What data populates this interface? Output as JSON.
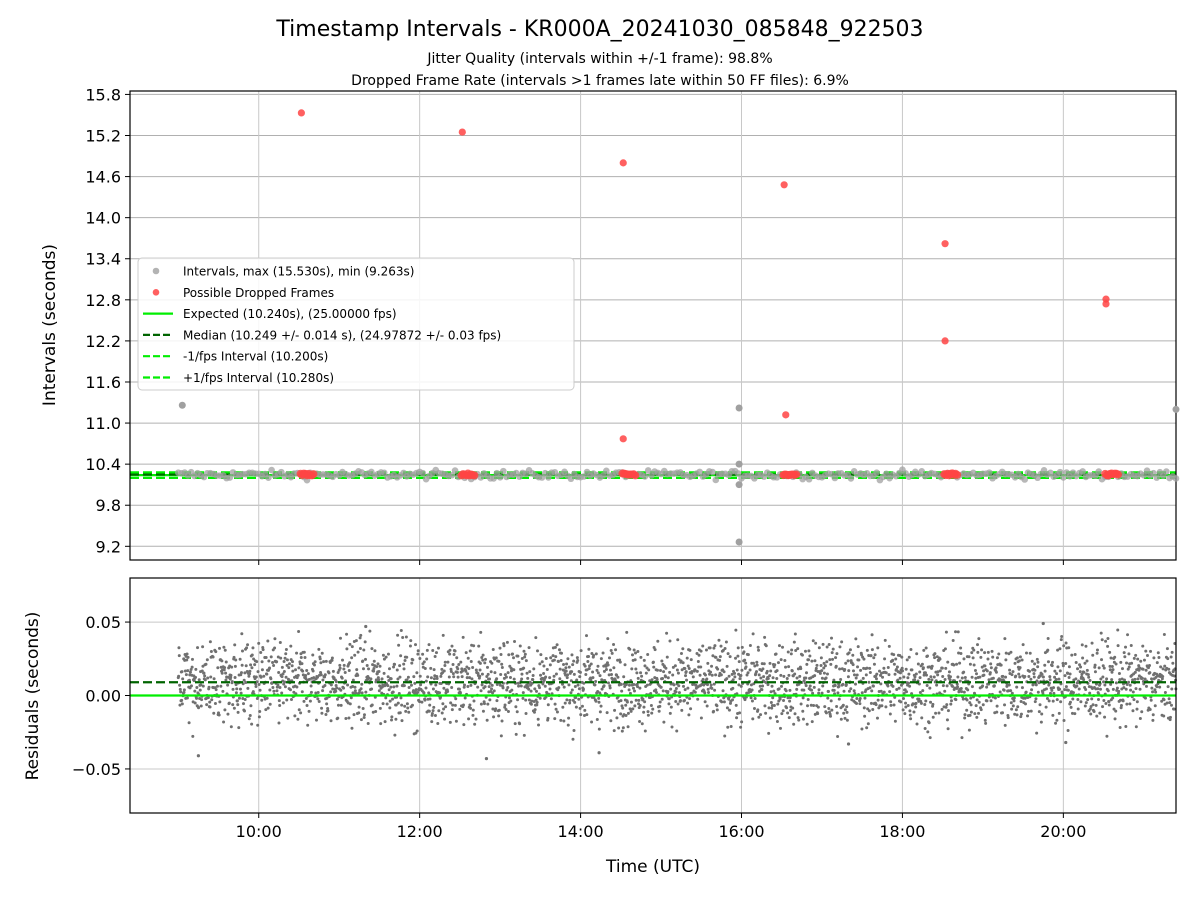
{
  "title": "Timestamp Intervals - KR000A_20241030_085848_922503",
  "subtitle_1": "Jitter Quality (intervals within +/-1 frame): 98.8%",
  "subtitle_2": "Dropped Frame Rate (intervals >1 frames late within 50 FF files): 6.9%",
  "chart_data": [
    {
      "type": "scatter",
      "ylabel": "Intervals (seconds)",
      "xlabel": "",
      "xlim_hours": [
        8.4,
        21.4
      ],
      "ylim": [
        9.0,
        15.85
      ],
      "yticks": [
        9.2,
        9.8,
        10.4,
        11.0,
        11.6,
        12.2,
        12.8,
        13.4,
        14.0,
        14.6,
        15.2,
        15.8
      ],
      "ytick_labels": [
        "9.2",
        "9.8",
        "10.4",
        "11.0",
        "11.6",
        "12.2",
        "12.8",
        "13.4",
        "14.0",
        "14.6",
        "15.2",
        "15.8"
      ],
      "grid": true,
      "legend_position": "center-left",
      "legend": [
        {
          "label": "Intervals, max (15.530s), min (9.263s)",
          "style": "dot",
          "color": "#a0a0a0"
        },
        {
          "label": "Possible Dropped Frames",
          "style": "dot",
          "color": "#ff4444"
        },
        {
          "label": "Expected (10.240s), (25.00000 fps)",
          "style": "solid",
          "color": "#00ee00"
        },
        {
          "label": "Median (10.249 +/- 0.014 s), (24.97872 +/- 0.03 fps)",
          "style": "dashed",
          "color": "#006400"
        },
        {
          "label": "-1/fps Interval (10.200s)",
          "style": "dashed",
          "color": "#00ee00"
        },
        {
          "label": "+1/fps Interval (10.280s)",
          "style": "dashed",
          "color": "#00ee00"
        }
      ],
      "series": [
        {
          "name": "Intervals, max (15.530s), min (9.263s)",
          "color": "#a0a0a0",
          "band": {
            "x_start": 9.0,
            "x_end": 21.4,
            "y_center": 10.245,
            "y_spread": 0.03
          },
          "points": [
            {
              "x": 9.05,
              "y": 11.26
            },
            {
              "x": 15.97,
              "y": 11.22
            },
            {
              "x": 15.97,
              "y": 10.4
            },
            {
              "x": 15.97,
              "y": 10.1
            },
            {
              "x": 15.97,
              "y": 9.263
            },
            {
              "x": 21.4,
              "y": 11.2
            }
          ]
        },
        {
          "name": "Possible Dropped Frames",
          "color": "#ff4444",
          "points": [
            {
              "x": 10.53,
              "y": 15.53
            },
            {
              "x": 12.53,
              "y": 15.25
            },
            {
              "x": 14.53,
              "y": 14.8
            },
            {
              "x": 14.53,
              "y": 10.77
            },
            {
              "x": 16.53,
              "y": 14.48
            },
            {
              "x": 16.55,
              "y": 11.12
            },
            {
              "x": 18.53,
              "y": 13.62
            },
            {
              "x": 18.53,
              "y": 12.2
            },
            {
              "x": 20.53,
              "y": 12.81
            },
            {
              "x": 20.53,
              "y": 12.74
            }
          ],
          "clusters": [
            {
              "x_start": 10.52,
              "x_end": 10.68,
              "y": 10.25
            },
            {
              "x_start": 12.52,
              "x_end": 12.68,
              "y": 10.25
            },
            {
              "x_start": 14.52,
              "x_end": 14.68,
              "y": 10.25
            },
            {
              "x_start": 16.52,
              "x_end": 16.68,
              "y": 10.25
            },
            {
              "x_start": 18.52,
              "x_end": 18.68,
              "y": 10.25
            },
            {
              "x_start": 20.52,
              "x_end": 20.68,
              "y": 10.25
            }
          ]
        }
      ],
      "reference_lines": [
        {
          "name": "Expected (10.240s), (25.00000 fps)",
          "y": 10.24,
          "color": "#00ee00",
          "dash": "solid"
        },
        {
          "name": "Median (10.249 +/- 0.014 s), (24.97872 +/- 0.03 fps)",
          "y": 10.249,
          "color": "#006400",
          "dash": "dashed"
        },
        {
          "name": "-1/fps Interval (10.200s)",
          "y": 10.2,
          "color": "#00ee00",
          "dash": "dashed"
        },
        {
          "name": "+1/fps Interval (10.280s)",
          "y": 10.28,
          "color": "#00ee00",
          "dash": "dashed"
        }
      ]
    },
    {
      "type": "scatter",
      "ylabel": "Residuals (seconds)",
      "xlabel": "Time (UTC)",
      "xlim_hours": [
        8.4,
        21.4
      ],
      "ylim": [
        -0.08,
        0.08
      ],
      "yticks": [
        -0.05,
        0.0,
        0.05
      ],
      "ytick_labels": [
        "−0.05",
        "0.00",
        "0.05"
      ],
      "xticks_hours": [
        10,
        12,
        14,
        16,
        18,
        20
      ],
      "xtick_labels": [
        "10:00",
        "12:00",
        "14:00",
        "16:00",
        "18:00",
        "20:00"
      ],
      "grid": true,
      "series": [
        {
          "name": "Residuals",
          "color": "#707070",
          "band": {
            "x_start": 9.0,
            "x_end": 21.4,
            "y_center": 0.009,
            "y_spread": 0.014
          },
          "outliers": [
            {
              "x": 9.25,
              "y": -0.041
            },
            {
              "x": 12.83,
              "y": -0.043
            },
            {
              "x": 14.23,
              "y": -0.039
            },
            {
              "x": 19.75,
              "y": 0.049
            },
            {
              "x": 11.33,
              "y": 0.047
            },
            {
              "x": 20.03,
              "y": -0.032
            },
            {
              "x": 17.33,
              "y": -0.033
            }
          ]
        }
      ],
      "reference_lines": [
        {
          "y": 0.0,
          "color": "#00ee00",
          "dash": "solid"
        },
        {
          "y": 0.009,
          "color": "#006400",
          "dash": "dashed"
        }
      ]
    }
  ]
}
